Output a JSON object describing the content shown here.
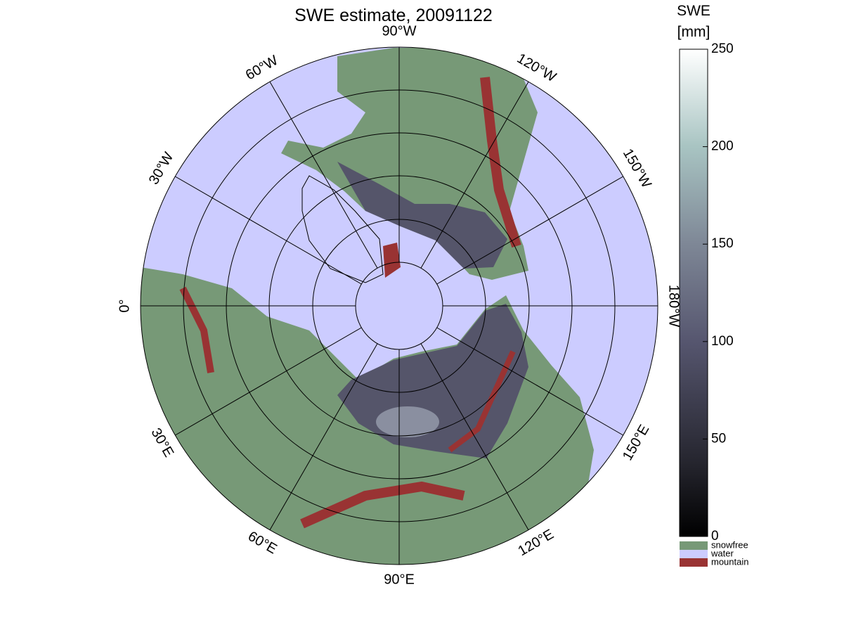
{
  "title": "SWE estimate, 20091122",
  "meridians": [
    {
      "lon": -90,
      "label": "90°W"
    },
    {
      "lon": -120,
      "label": "120°W"
    },
    {
      "lon": -150,
      "label": "150°W"
    },
    {
      "lon": 180,
      "label": "180°W"
    },
    {
      "lon": 150,
      "label": "150°E"
    },
    {
      "lon": 120,
      "label": "120°E"
    },
    {
      "lon": 90,
      "label": "90°E"
    },
    {
      "lon": 60,
      "label": "60°E"
    },
    {
      "lon": 30,
      "label": "30°E"
    },
    {
      "lon": 0,
      "label": "0°"
    },
    {
      "lon": -30,
      "label": "30°W"
    },
    {
      "lon": -60,
      "label": "60°W"
    }
  ],
  "colorbar": {
    "title": [
      "SWE",
      "[mm]"
    ],
    "lim": [
      0,
      250
    ],
    "ticks": [
      0,
      50,
      100,
      150,
      200,
      250
    ]
  },
  "legend": [
    {
      "label": "snowfree",
      "color": "#779977"
    },
    {
      "label": "water",
      "color": "#ccccff"
    },
    {
      "label": "mountain",
      "color": "#993333"
    }
  ]
}
